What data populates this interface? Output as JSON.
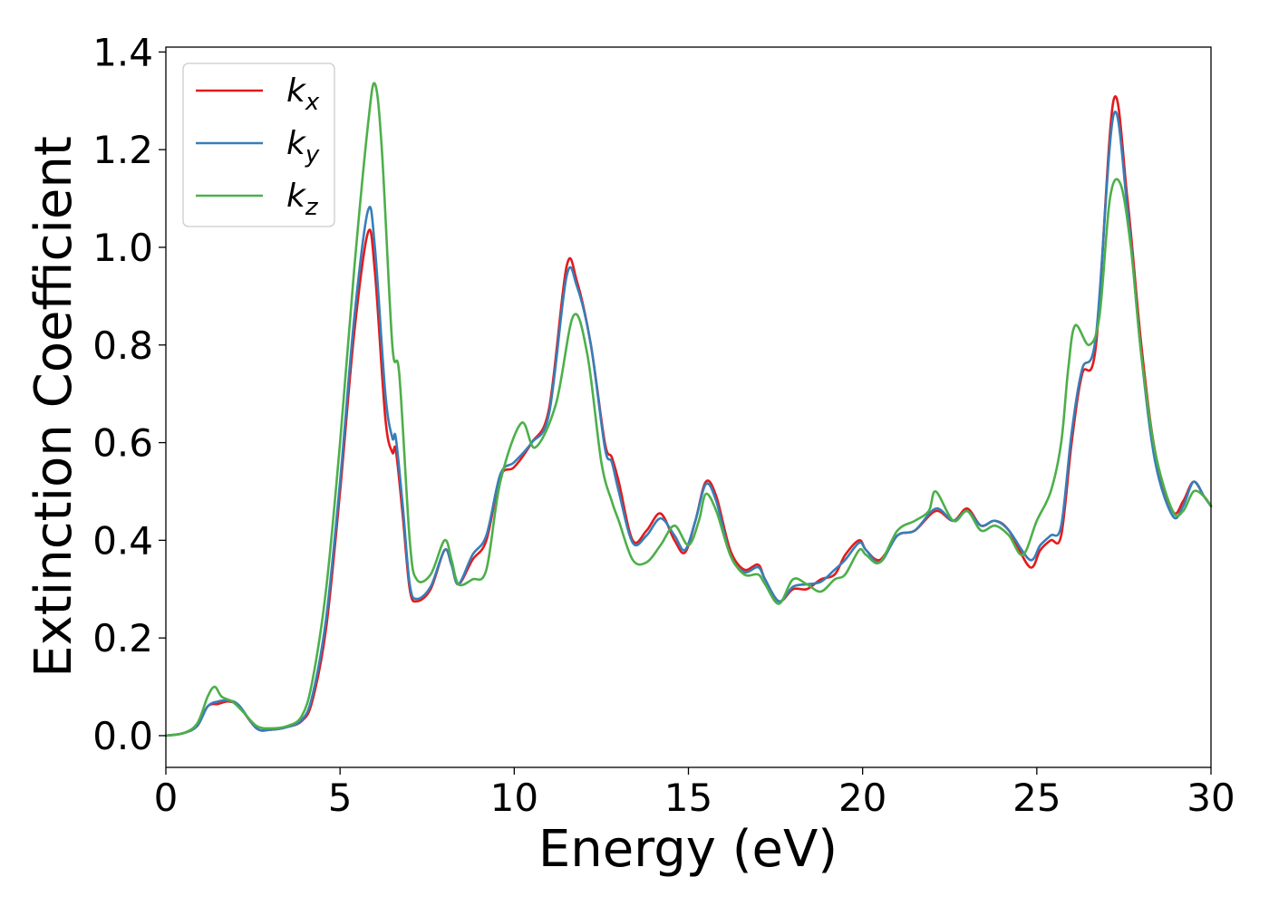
{
  "chart_data": {
    "type": "line",
    "title": "",
    "xlabel": "Energy (eV)",
    "ylabel": "Extinction Coefficient",
    "xlim": [
      0,
      30
    ],
    "ylim": [
      -0.065,
      1.41
    ],
    "xticks": [
      0,
      5,
      10,
      15,
      20,
      25,
      30
    ],
    "xtick_labels": [
      "0",
      "5",
      "10",
      "15",
      "20",
      "25",
      "30"
    ],
    "yticks": [
      0.0,
      0.2,
      0.4,
      0.6,
      0.8,
      1.0,
      1.2,
      1.4
    ],
    "ytick_labels": [
      "0.0",
      "0.2",
      "0.4",
      "0.6",
      "0.8",
      "1.0",
      "1.2",
      "1.4"
    ],
    "grid": false,
    "legend_position": "top-left",
    "series": [
      {
        "name": "k",
        "subscript": "x",
        "color": "#e41a1c",
        "points": [
          [
            0,
            0
          ],
          [
            0.5,
            0.005
          ],
          [
            0.9,
            0.02
          ],
          [
            1.2,
            0.06
          ],
          [
            1.5,
            0.065
          ],
          [
            1.8,
            0.07
          ],
          [
            2.1,
            0.06
          ],
          [
            2.6,
            0.015
          ],
          [
            3.0,
            0.012
          ],
          [
            3.5,
            0.018
          ],
          [
            3.9,
            0.03
          ],
          [
            4.2,
            0.07
          ],
          [
            4.6,
            0.22
          ],
          [
            5.0,
            0.5
          ],
          [
            5.4,
            0.82
          ],
          [
            5.8,
            1.03
          ],
          [
            6.0,
            0.95
          ],
          [
            6.3,
            0.65
          ],
          [
            6.5,
            0.58
          ],
          [
            6.6,
            0.585
          ],
          [
            6.8,
            0.45
          ],
          [
            7.0,
            0.3
          ],
          [
            7.2,
            0.275
          ],
          [
            7.6,
            0.3
          ],
          [
            8.0,
            0.38
          ],
          [
            8.2,
            0.35
          ],
          [
            8.4,
            0.31
          ],
          [
            8.8,
            0.36
          ],
          [
            9.2,
            0.4
          ],
          [
            9.6,
            0.53
          ],
          [
            10.0,
            0.55
          ],
          [
            10.5,
            0.6
          ],
          [
            11.0,
            0.67
          ],
          [
            11.5,
            0.96
          ],
          [
            11.8,
            0.93
          ],
          [
            12.2,
            0.8
          ],
          [
            12.6,
            0.6
          ],
          [
            12.8,
            0.57
          ],
          [
            13.0,
            0.52
          ],
          [
            13.4,
            0.4
          ],
          [
            13.8,
            0.42
          ],
          [
            14.2,
            0.455
          ],
          [
            14.6,
            0.4
          ],
          [
            14.9,
            0.375
          ],
          [
            15.2,
            0.44
          ],
          [
            15.5,
            0.52
          ],
          [
            15.8,
            0.49
          ],
          [
            16.2,
            0.38
          ],
          [
            16.6,
            0.34
          ],
          [
            17.0,
            0.35
          ],
          [
            17.2,
            0.32
          ],
          [
            17.6,
            0.275
          ],
          [
            18.0,
            0.3
          ],
          [
            18.4,
            0.3
          ],
          [
            18.8,
            0.32
          ],
          [
            19.2,
            0.33
          ],
          [
            19.5,
            0.37
          ],
          [
            19.9,
            0.4
          ],
          [
            20.1,
            0.38
          ],
          [
            20.5,
            0.36
          ],
          [
            21.0,
            0.41
          ],
          [
            21.5,
            0.42
          ],
          [
            22.1,
            0.46
          ],
          [
            22.6,
            0.44
          ],
          [
            23.0,
            0.465
          ],
          [
            23.4,
            0.43
          ],
          [
            23.8,
            0.44
          ],
          [
            24.2,
            0.42
          ],
          [
            24.8,
            0.345
          ],
          [
            25.1,
            0.38
          ],
          [
            25.4,
            0.4
          ],
          [
            25.7,
            0.41
          ],
          [
            26.0,
            0.6
          ],
          [
            26.3,
            0.74
          ],
          [
            26.7,
            0.8
          ],
          [
            27.2,
            1.3
          ],
          [
            27.6,
            1.1
          ],
          [
            28.0,
            0.8
          ],
          [
            28.4,
            0.58
          ],
          [
            28.9,
            0.46
          ],
          [
            29.2,
            0.48
          ],
          [
            29.5,
            0.52
          ],
          [
            29.8,
            0.49
          ],
          [
            30.0,
            0.47
          ]
        ]
      },
      {
        "name": "k",
        "subscript": "y",
        "color": "#377eb8",
        "points": [
          [
            0,
            0
          ],
          [
            0.5,
            0.005
          ],
          [
            0.9,
            0.02
          ],
          [
            1.2,
            0.06
          ],
          [
            1.5,
            0.07
          ],
          [
            1.8,
            0.072
          ],
          [
            2.1,
            0.062
          ],
          [
            2.6,
            0.015
          ],
          [
            3.0,
            0.012
          ],
          [
            3.5,
            0.018
          ],
          [
            3.9,
            0.032
          ],
          [
            4.2,
            0.08
          ],
          [
            4.6,
            0.24
          ],
          [
            5.0,
            0.52
          ],
          [
            5.4,
            0.85
          ],
          [
            5.8,
            1.075
          ],
          [
            6.0,
            1.0
          ],
          [
            6.3,
            0.7
          ],
          [
            6.5,
            0.61
          ],
          [
            6.6,
            0.61
          ],
          [
            6.8,
            0.47
          ],
          [
            7.0,
            0.31
          ],
          [
            7.2,
            0.28
          ],
          [
            7.6,
            0.305
          ],
          [
            8.0,
            0.38
          ],
          [
            8.2,
            0.35
          ],
          [
            8.4,
            0.31
          ],
          [
            8.8,
            0.37
          ],
          [
            9.2,
            0.41
          ],
          [
            9.6,
            0.535
          ],
          [
            10.0,
            0.56
          ],
          [
            10.5,
            0.6
          ],
          [
            11.0,
            0.66
          ],
          [
            11.5,
            0.94
          ],
          [
            11.8,
            0.92
          ],
          [
            12.2,
            0.8
          ],
          [
            12.6,
            0.59
          ],
          [
            12.8,
            0.56
          ],
          [
            13.0,
            0.5
          ],
          [
            13.4,
            0.395
          ],
          [
            13.8,
            0.41
          ],
          [
            14.2,
            0.445
          ],
          [
            14.6,
            0.41
          ],
          [
            14.9,
            0.38
          ],
          [
            15.2,
            0.44
          ],
          [
            15.5,
            0.515
          ],
          [
            15.8,
            0.48
          ],
          [
            16.2,
            0.37
          ],
          [
            16.6,
            0.335
          ],
          [
            17.0,
            0.345
          ],
          [
            17.2,
            0.32
          ],
          [
            17.6,
            0.275
          ],
          [
            18.0,
            0.305
          ],
          [
            18.4,
            0.31
          ],
          [
            18.8,
            0.315
          ],
          [
            19.2,
            0.34
          ],
          [
            19.5,
            0.36
          ],
          [
            19.9,
            0.395
          ],
          [
            20.1,
            0.38
          ],
          [
            20.5,
            0.355
          ],
          [
            21.0,
            0.41
          ],
          [
            21.5,
            0.42
          ],
          [
            22.1,
            0.465
          ],
          [
            22.6,
            0.44
          ],
          [
            23.0,
            0.46
          ],
          [
            23.4,
            0.43
          ],
          [
            23.8,
            0.44
          ],
          [
            24.2,
            0.42
          ],
          [
            24.8,
            0.36
          ],
          [
            25.1,
            0.39
          ],
          [
            25.4,
            0.41
          ],
          [
            25.7,
            0.43
          ],
          [
            26.0,
            0.62
          ],
          [
            26.3,
            0.75
          ],
          [
            26.7,
            0.82
          ],
          [
            27.2,
            1.27
          ],
          [
            27.6,
            1.08
          ],
          [
            28.0,
            0.78
          ],
          [
            28.4,
            0.56
          ],
          [
            28.9,
            0.45
          ],
          [
            29.2,
            0.47
          ],
          [
            29.5,
            0.52
          ],
          [
            29.8,
            0.49
          ],
          [
            30.0,
            0.47
          ]
        ]
      },
      {
        "name": "k",
        "subscript": "z",
        "color": "#4daf4a",
        "points": [
          [
            0,
            0
          ],
          [
            0.5,
            0.005
          ],
          [
            0.9,
            0.025
          ],
          [
            1.2,
            0.08
          ],
          [
            1.4,
            0.1
          ],
          [
            1.6,
            0.08
          ],
          [
            1.9,
            0.07
          ],
          [
            2.2,
            0.05
          ],
          [
            2.6,
            0.02
          ],
          [
            3.0,
            0.015
          ],
          [
            3.5,
            0.02
          ],
          [
            3.9,
            0.04
          ],
          [
            4.2,
            0.11
          ],
          [
            4.6,
            0.3
          ],
          [
            5.0,
            0.6
          ],
          [
            5.4,
            0.95
          ],
          [
            5.8,
            1.25
          ],
          [
            6.0,
            1.335
          ],
          [
            6.2,
            1.2
          ],
          [
            6.5,
            0.8
          ],
          [
            6.7,
            0.74
          ],
          [
            7.0,
            0.4
          ],
          [
            7.2,
            0.32
          ],
          [
            7.6,
            0.33
          ],
          [
            8.0,
            0.4
          ],
          [
            8.2,
            0.36
          ],
          [
            8.4,
            0.31
          ],
          [
            8.8,
            0.32
          ],
          [
            9.2,
            0.34
          ],
          [
            9.6,
            0.52
          ],
          [
            10.2,
            0.64
          ],
          [
            10.6,
            0.59
          ],
          [
            11.2,
            0.68
          ],
          [
            11.7,
            0.86
          ],
          [
            12.1,
            0.78
          ],
          [
            12.5,
            0.56
          ],
          [
            12.8,
            0.48
          ],
          [
            13.0,
            0.44
          ],
          [
            13.4,
            0.36
          ],
          [
            13.8,
            0.355
          ],
          [
            14.2,
            0.39
          ],
          [
            14.6,
            0.43
          ],
          [
            15.0,
            0.39
          ],
          [
            15.3,
            0.44
          ],
          [
            15.5,
            0.495
          ],
          [
            15.8,
            0.46
          ],
          [
            16.2,
            0.37
          ],
          [
            16.6,
            0.33
          ],
          [
            17.0,
            0.33
          ],
          [
            17.2,
            0.31
          ],
          [
            17.6,
            0.27
          ],
          [
            18.0,
            0.32
          ],
          [
            18.4,
            0.31
          ],
          [
            18.8,
            0.295
          ],
          [
            19.2,
            0.32
          ],
          [
            19.5,
            0.33
          ],
          [
            19.9,
            0.38
          ],
          [
            20.1,
            0.37
          ],
          [
            20.5,
            0.355
          ],
          [
            21.0,
            0.42
          ],
          [
            21.5,
            0.44
          ],
          [
            21.9,
            0.46
          ],
          [
            22.1,
            0.5
          ],
          [
            22.6,
            0.44
          ],
          [
            23.0,
            0.46
          ],
          [
            23.4,
            0.42
          ],
          [
            23.8,
            0.43
          ],
          [
            24.2,
            0.41
          ],
          [
            24.6,
            0.37
          ],
          [
            25.0,
            0.44
          ],
          [
            25.4,
            0.5
          ],
          [
            25.7,
            0.6
          ],
          [
            25.9,
            0.75
          ],
          [
            26.1,
            0.84
          ],
          [
            26.5,
            0.8
          ],
          [
            26.8,
            0.86
          ],
          [
            27.1,
            1.1
          ],
          [
            27.4,
            1.13
          ],
          [
            27.7,
            1.0
          ],
          [
            28.0,
            0.78
          ],
          [
            28.4,
            0.58
          ],
          [
            28.9,
            0.46
          ],
          [
            29.2,
            0.46
          ],
          [
            29.5,
            0.5
          ],
          [
            29.8,
            0.49
          ],
          [
            30.0,
            0.47
          ]
        ]
      }
    ]
  }
}
